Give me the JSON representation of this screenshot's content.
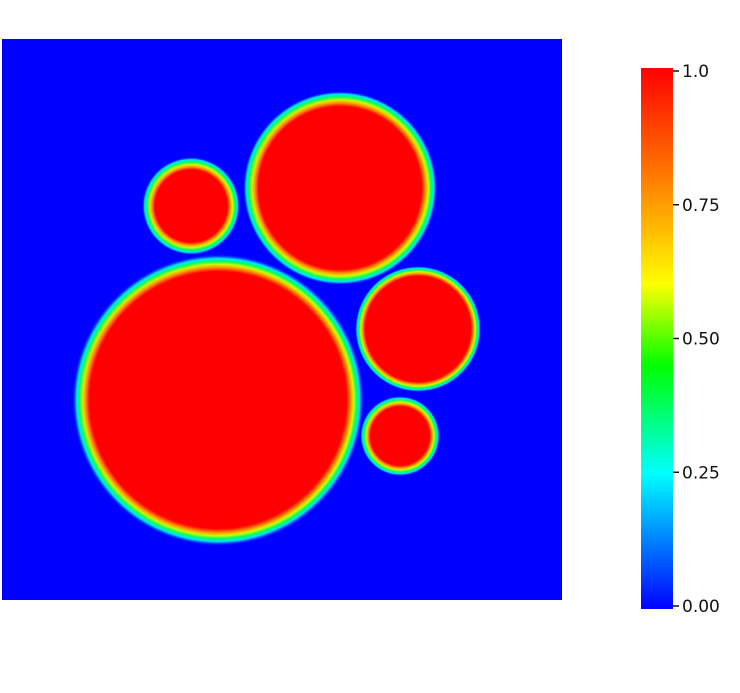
{
  "colorbar": {
    "min": 0.0,
    "max": 1.0,
    "ticks": [
      {
        "value": 1.0,
        "label": "1.0"
      },
      {
        "value": 0.75,
        "label": "0.75"
      },
      {
        "value": 0.5,
        "label": "0.50"
      },
      {
        "value": 0.25,
        "label": "0.25"
      },
      {
        "value": 0.0,
        "label": "0.00"
      }
    ],
    "colors": [
      "#ff0000",
      "#ff7a00",
      "#ffff00",
      "#00ff00",
      "#00ffff",
      "#0000ff"
    ]
  },
  "field": {
    "background_color": "#0000ff",
    "inside_color": "#ff0000"
  }
}
